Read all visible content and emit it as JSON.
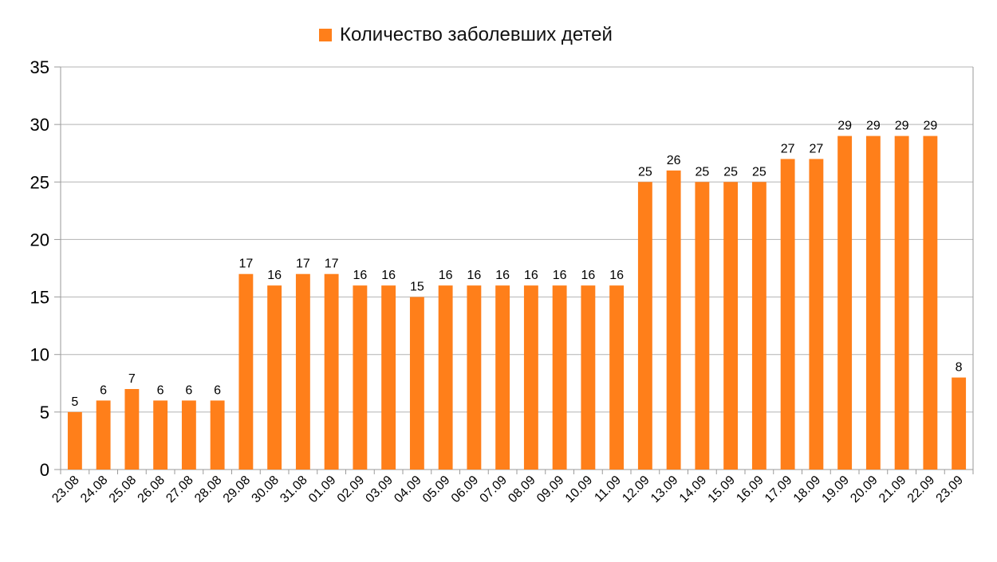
{
  "chart_data": {
    "type": "bar",
    "title": "",
    "xlabel": "",
    "ylabel": "",
    "ylim": [
      0,
      35
    ],
    "yticks": [
      0,
      5,
      10,
      15,
      20,
      25,
      30,
      35
    ],
    "grid": true,
    "legend_position": "top-center",
    "categories": [
      "23.08",
      "24.08",
      "25.08",
      "26.08",
      "27.08",
      "28.08",
      "29.08",
      "30.08",
      "31.08",
      "01.09",
      "02.09",
      "03.09",
      "04.09",
      "05.09",
      "06.09",
      "07.09",
      "08.09",
      "09.09",
      "10.09",
      "11.09",
      "12.09",
      "13.09",
      "14.09",
      "15.09",
      "16.09",
      "17.09",
      "18.09",
      "19.09",
      "20.09",
      "21.09",
      "22.09",
      "23.09"
    ],
    "series": [
      {
        "name": "Количество заболевших детей",
        "color": "#FF7F1A",
        "values": [
          5,
          6,
          7,
          6,
          6,
          6,
          17,
          16,
          17,
          17,
          16,
          16,
          15,
          16,
          16,
          16,
          16,
          16,
          16,
          16,
          25,
          26,
          25,
          25,
          25,
          27,
          27,
          29,
          29,
          29,
          29,
          8
        ]
      }
    ]
  }
}
